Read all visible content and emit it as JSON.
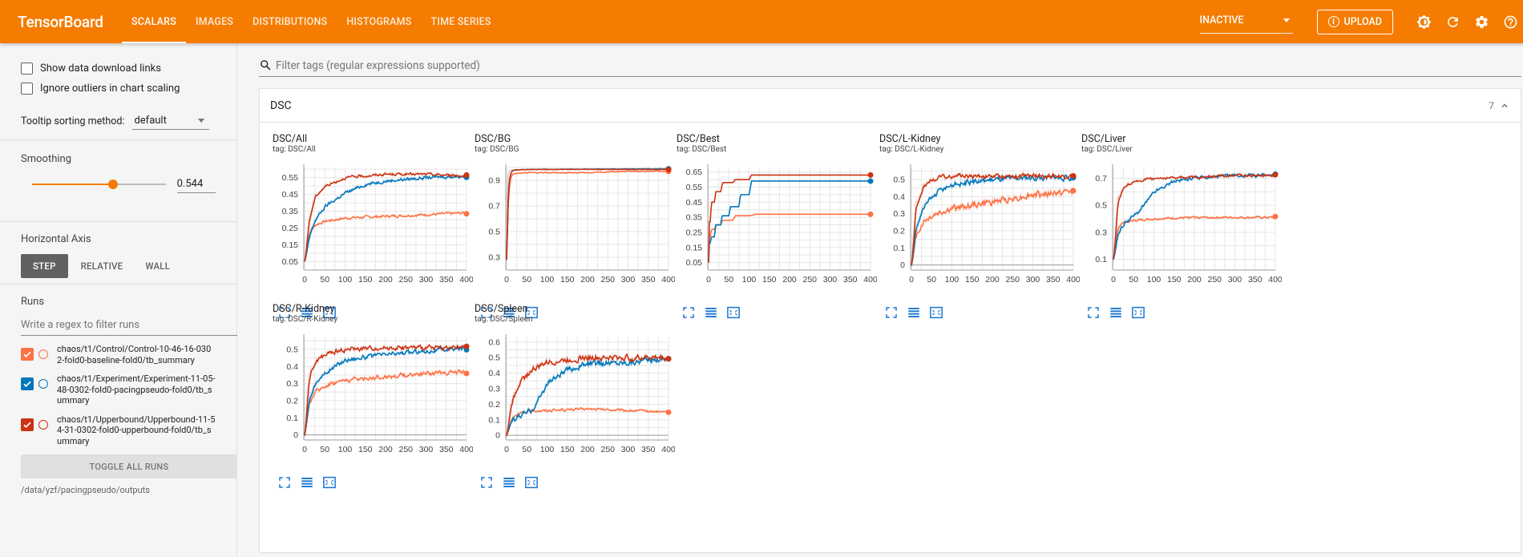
{
  "header": {
    "brand": "TensorBoard",
    "tabs": [
      {
        "label": "SCALARS",
        "active": true
      },
      {
        "label": "IMAGES",
        "active": false
      },
      {
        "label": "DISTRIBUTIONS",
        "active": false
      },
      {
        "label": "HISTOGRAMS",
        "active": false
      },
      {
        "label": "TIME SERIES",
        "active": false
      }
    ],
    "reload_status": "INACTIVE",
    "upload_label": "UPLOAD",
    "icons": [
      "brightness-icon",
      "refresh-icon",
      "settings-icon",
      "help-icon"
    ]
  },
  "sidebar": {
    "show_download_links": "Show data download links",
    "ignore_outliers": "Ignore outliers in chart scaling",
    "tooltip_sort_label": "Tooltip sorting method:",
    "tooltip_sort_value": "default",
    "smoothing_label": "Smoothing",
    "smoothing_value": "0.544",
    "smoothing_fraction": 0.544,
    "horizontal_axis_label": "Horizontal Axis",
    "axis_options": [
      {
        "label": "STEP",
        "active": true
      },
      {
        "label": "RELATIVE",
        "active": false
      },
      {
        "label": "WALL",
        "active": false
      }
    ],
    "runs_label": "Runs",
    "runs_filter_placeholder": "Write a regex to filter runs",
    "runs": [
      {
        "name": "chaos/t1/Control/Control-10-46-16-0302-fold0-baseline-fold0/tb_summary",
        "color": "#ff7043",
        "checked": true
      },
      {
        "name": "chaos/t1/Experiment/Experiment-11-05-48-0302-fold0-pacingpseudo-fold0/tb_summary",
        "color": "#0077bb",
        "checked": true
      },
      {
        "name": "chaos/t1/Upperbound/Upperbound-11-54-31-0302-fold0-upperbound-fold0/tb_summary",
        "color": "#cc3311",
        "checked": true
      }
    ],
    "toggle_all_label": "TOGGLE ALL RUNS",
    "logdir": "/data/yzf/pacingpseudo/outputs"
  },
  "main": {
    "filter_placeholder": "Filter tags (regular expressions supported)",
    "group_title": "DSC",
    "group_count": "7"
  },
  "chart_data": [
    {
      "type": "line",
      "title": "DSC/All",
      "tag": "tag: DSC/All",
      "xlim": [
        0,
        400
      ],
      "ylim": [
        0,
        0.61
      ],
      "x_ticks": [
        "0",
        "50",
        "100",
        "150",
        "200",
        "250",
        "300",
        "350",
        "400"
      ],
      "y_ticks": [
        "0.05",
        "0.15",
        "0.25",
        "0.35",
        "0.45",
        "0.55"
      ],
      "y_tick_values": [
        0.05,
        0.15,
        0.25,
        0.35,
        0.45,
        0.55
      ],
      "series": [
        {
          "run": "Control",
          "color": "#ff7043",
          "x": [
            0,
            10,
            25,
            50,
            100,
            200,
            300,
            400
          ],
          "y": [
            0.05,
            0.22,
            0.27,
            0.29,
            0.31,
            0.32,
            0.33,
            0.34
          ],
          "noise": 0.012
        },
        {
          "run": "Experiment",
          "color": "#0077bb",
          "x": [
            0,
            10,
            25,
            50,
            100,
            150,
            200,
            300,
            400
          ],
          "y": [
            0.05,
            0.2,
            0.3,
            0.38,
            0.46,
            0.51,
            0.53,
            0.55,
            0.56
          ],
          "noise": 0.015
        },
        {
          "run": "Upperbound",
          "color": "#cc3311",
          "x": [
            0,
            10,
            25,
            50,
            100,
            150,
            200,
            300,
            400
          ],
          "y": [
            0.05,
            0.3,
            0.44,
            0.5,
            0.55,
            0.56,
            0.57,
            0.57,
            0.56
          ],
          "noise": 0.012
        }
      ]
    },
    {
      "type": "line",
      "title": "DSC/BG",
      "tag": "tag: DSC/BG",
      "xlim": [
        0,
        400
      ],
      "ylim": [
        0.2,
        1.0
      ],
      "x_ticks": [
        "0",
        "50",
        "100",
        "150",
        "200",
        "250",
        "300",
        "350",
        "400"
      ],
      "y_ticks": [
        "0.3",
        "0.5",
        "0.7",
        "0.9"
      ],
      "y_tick_values": [
        0.3,
        0.5,
        0.7,
        0.9
      ],
      "series": [
        {
          "run": "Control",
          "color": "#ff7043",
          "x": [
            0,
            3,
            10,
            50,
            100,
            200,
            300,
            400
          ],
          "y": [
            0.28,
            0.9,
            0.95,
            0.96,
            0.96,
            0.96,
            0.97,
            0.97
          ],
          "noise": 0.006
        },
        {
          "run": "Experiment",
          "color": "#0077bb",
          "x": [
            0,
            3,
            10,
            50,
            400
          ],
          "y": [
            0.28,
            0.95,
            0.98,
            0.985,
            0.99
          ],
          "noise": 0.002
        },
        {
          "run": "Upperbound",
          "color": "#cc3311",
          "x": [
            0,
            3,
            10,
            50,
            400
          ],
          "y": [
            0.28,
            0.96,
            0.98,
            0.985,
            0.985
          ],
          "noise": 0.002
        }
      ]
    },
    {
      "type": "line",
      "title": "DSC/Best",
      "tag": "tag: DSC/Best",
      "xlim": [
        0,
        400
      ],
      "ylim": [
        0,
        0.68
      ],
      "x_ticks": [
        "0",
        "50",
        "100",
        "150",
        "200",
        "250",
        "300",
        "350",
        "400"
      ],
      "y_ticks": [
        "0.05",
        "0.15",
        "0.25",
        "0.35",
        "0.45",
        "0.55",
        "0.65"
      ],
      "y_tick_values": [
        0.05,
        0.15,
        0.25,
        0.35,
        0.45,
        0.55,
        0.65
      ],
      "series": [
        {
          "run": "Control",
          "color": "#ff7043",
          "x": [
            0,
            5,
            15,
            30,
            60,
            100,
            220,
            400
          ],
          "y": [
            0.05,
            0.22,
            0.27,
            0.3,
            0.33,
            0.36,
            0.37,
            0.37
          ],
          "noise": 0,
          "step": true
        },
        {
          "run": "Experiment",
          "color": "#0077bb",
          "x": [
            0,
            5,
            15,
            30,
            50,
            75,
            100,
            140,
            400
          ],
          "y": [
            0.05,
            0.18,
            0.22,
            0.3,
            0.36,
            0.42,
            0.5,
            0.59,
            0.59
          ],
          "noise": 0,
          "step": true
        },
        {
          "run": "Upperbound",
          "color": "#cc3311",
          "x": [
            0,
            5,
            15,
            30,
            60,
            100,
            140,
            400
          ],
          "y": [
            0.05,
            0.32,
            0.45,
            0.52,
            0.58,
            0.6,
            0.63,
            0.63
          ],
          "noise": 0,
          "step": true
        }
      ]
    },
    {
      "type": "line",
      "title": "DSC/L-Kidney",
      "tag": "tag: DSC/L-Kidney",
      "xlim": [
        0,
        400
      ],
      "ylim": [
        -0.03,
        0.57
      ],
      "x_ticks": [
        "0",
        "50",
        "100",
        "150",
        "200",
        "250",
        "300",
        "350",
        "400"
      ],
      "y_ticks": [
        "0",
        "0.1",
        "0.2",
        "0.3",
        "0.4",
        "0.5"
      ],
      "y_tick_values": [
        0,
        0.1,
        0.2,
        0.3,
        0.4,
        0.5
      ],
      "series": [
        {
          "run": "Control",
          "color": "#ff7043",
          "x": [
            0,
            10,
            30,
            60,
            100,
            200,
            300,
            400
          ],
          "y": [
            0,
            0.18,
            0.26,
            0.3,
            0.33,
            0.37,
            0.41,
            0.43
          ],
          "noise": 0.03
        },
        {
          "run": "Experiment",
          "color": "#0077bb",
          "x": [
            0,
            10,
            30,
            60,
            100,
            200,
            300,
            400
          ],
          "y": [
            0,
            0.22,
            0.34,
            0.42,
            0.47,
            0.5,
            0.51,
            0.51
          ],
          "noise": 0.025
        },
        {
          "run": "Upperbound",
          "color": "#cc3311",
          "x": [
            0,
            10,
            30,
            60,
            100,
            200,
            300,
            400
          ],
          "y": [
            0,
            0.35,
            0.47,
            0.51,
            0.52,
            0.52,
            0.52,
            0.52
          ],
          "noise": 0.02
        }
      ]
    },
    {
      "type": "line",
      "title": "DSC/Liver",
      "tag": "tag: DSC/Liver",
      "xlim": [
        0,
        400
      ],
      "ylim": [
        0.02,
        0.78
      ],
      "x_ticks": [
        "0",
        "50",
        "100",
        "150",
        "200",
        "250",
        "300",
        "350",
        "400"
      ],
      "y_ticks": [
        "0.1",
        "0.3",
        "0.5",
        "0.7"
      ],
      "y_tick_values": [
        0.1,
        0.3,
        0.5,
        0.7
      ],
      "series": [
        {
          "run": "Control",
          "color": "#ff7043",
          "x": [
            0,
            10,
            30,
            60,
            100,
            200,
            300,
            400
          ],
          "y": [
            0.1,
            0.35,
            0.38,
            0.39,
            0.4,
            0.41,
            0.41,
            0.41
          ],
          "noise": 0.012
        },
        {
          "run": "Experiment",
          "color": "#0077bb",
          "x": [
            0,
            10,
            30,
            60,
            100,
            150,
            200,
            300,
            400
          ],
          "y": [
            0.1,
            0.3,
            0.38,
            0.45,
            0.6,
            0.68,
            0.7,
            0.72,
            0.72
          ],
          "noise": 0.02
        },
        {
          "run": "Upperbound",
          "color": "#cc3311",
          "x": [
            0,
            10,
            30,
            60,
            100,
            200,
            300,
            400
          ],
          "y": [
            0.1,
            0.55,
            0.65,
            0.68,
            0.7,
            0.71,
            0.72,
            0.72
          ],
          "noise": 0.015
        }
      ]
    },
    {
      "type": "line",
      "title": "DSC/R-Kidney",
      "tag": "tag: DSC/R-Kidney",
      "xlim": [
        0,
        400
      ],
      "ylim": [
        -0.03,
        0.57
      ],
      "x_ticks": [
        "0",
        "50",
        "100",
        "150",
        "200",
        "250",
        "300",
        "350",
        "400"
      ],
      "y_ticks": [
        "0",
        "0.1",
        "0.2",
        "0.3",
        "0.4",
        "0.5"
      ],
      "y_tick_values": [
        0,
        0.1,
        0.2,
        0.3,
        0.4,
        0.5
      ],
      "series": [
        {
          "run": "Control",
          "color": "#ff7043",
          "x": [
            0,
            10,
            30,
            60,
            100,
            200,
            300,
            400
          ],
          "y": [
            0,
            0.2,
            0.26,
            0.3,
            0.32,
            0.34,
            0.36,
            0.37
          ],
          "noise": 0.02
        },
        {
          "run": "Experiment",
          "color": "#0077bb",
          "x": [
            0,
            10,
            30,
            60,
            100,
            200,
            300,
            400
          ],
          "y": [
            0,
            0.22,
            0.32,
            0.38,
            0.44,
            0.47,
            0.49,
            0.51
          ],
          "noise": 0.02
        },
        {
          "run": "Upperbound",
          "color": "#cc3311",
          "x": [
            0,
            10,
            30,
            60,
            100,
            200,
            300,
            400
          ],
          "y": [
            0,
            0.35,
            0.44,
            0.48,
            0.5,
            0.51,
            0.51,
            0.51
          ],
          "noise": 0.02
        }
      ]
    },
    {
      "type": "line",
      "title": "DSC/Spleen",
      "tag": "tag: DSC/Spleen",
      "xlim": [
        0,
        400
      ],
      "ylim": [
        -0.03,
        0.63
      ],
      "x_ticks": [
        "0",
        "50",
        "100",
        "150",
        "200",
        "250",
        "300",
        "350",
        "400"
      ],
      "y_ticks": [
        "0",
        "0.1",
        "0.2",
        "0.3",
        "0.4",
        "0.5",
        "0.6"
      ],
      "y_tick_values": [
        0,
        0.1,
        0.2,
        0.3,
        0.4,
        0.5,
        0.6
      ],
      "series": [
        {
          "run": "Control",
          "color": "#ff7043",
          "x": [
            0,
            10,
            30,
            60,
            100,
            200,
            300,
            400
          ],
          "y": [
            0,
            0.1,
            0.14,
            0.16,
            0.16,
            0.17,
            0.16,
            0.15
          ],
          "noise": 0.012
        },
        {
          "run": "Experiment",
          "color": "#0077bb",
          "x": [
            0,
            10,
            30,
            60,
            80,
            100,
            150,
            200,
            300,
            400
          ],
          "y": [
            0,
            0.1,
            0.12,
            0.16,
            0.24,
            0.34,
            0.42,
            0.46,
            0.47,
            0.5
          ],
          "noise": 0.03
        },
        {
          "run": "Upperbound",
          "color": "#cc3311",
          "x": [
            0,
            10,
            30,
            60,
            100,
            200,
            300,
            400
          ],
          "y": [
            0,
            0.2,
            0.34,
            0.42,
            0.47,
            0.5,
            0.5,
            0.5
          ],
          "noise": 0.03
        }
      ]
    }
  ]
}
